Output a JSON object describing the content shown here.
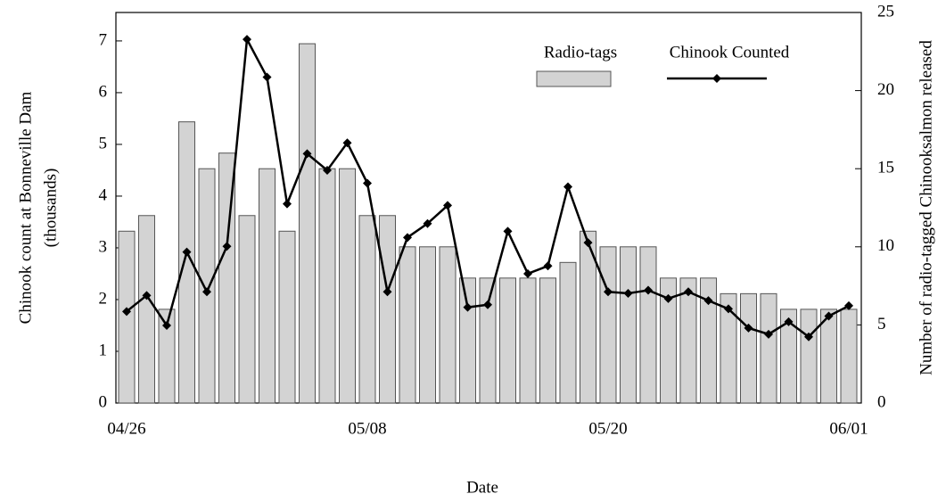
{
  "chart_data": {
    "type": "bar-line",
    "xlabel": "Date",
    "ylabel": [
      "Chinook count at Bonneville Dam",
      "(thousands)"
    ],
    "y2label": "Number of radio-tagged Chinooksalmon released",
    "categories": [
      "04/26",
      null,
      null,
      null,
      null,
      null,
      null,
      null,
      null,
      null,
      null,
      null,
      "05/08",
      null,
      null,
      null,
      null,
      null,
      null,
      null,
      null,
      null,
      null,
      null,
      "05/20",
      null,
      null,
      null,
      null,
      null,
      null,
      null,
      null,
      null,
      null,
      null,
      "06/01"
    ],
    "ylim": [
      0,
      7.55
    ],
    "yticks": [
      0,
      1,
      2,
      3,
      4,
      5,
      6,
      7
    ],
    "y2lim": [
      0,
      25
    ],
    "y2ticks": [
      0,
      5,
      10,
      15,
      20,
      25
    ],
    "series": [
      {
        "name": "Radio-tags",
        "type": "bar",
        "axis": "y2",
        "color": "#d3d3d3",
        "values": [
          11,
          12,
          6,
          18,
          15,
          16,
          12,
          15,
          11,
          23,
          15,
          15,
          12,
          12,
          10,
          10,
          10,
          8,
          8,
          8,
          8,
          8,
          9,
          11,
          10,
          10,
          10,
          8,
          8,
          8,
          7,
          7,
          7,
          6,
          6,
          6,
          6
        ]
      },
      {
        "name": "Chinook Counted",
        "type": "line",
        "color": "#000000",
        "values": [
          1.77,
          2.08,
          1.5,
          2.92,
          2.15,
          3.03,
          7.03,
          6.3,
          3.85,
          4.82,
          4.5,
          5.03,
          4.25,
          2.15,
          3.2,
          3.47,
          3.82,
          1.85,
          1.9,
          3.32,
          2.5,
          2.65,
          4.18,
          3.1,
          2.15,
          2.12,
          2.18,
          2.02,
          2.15,
          1.98,
          1.82,
          1.45,
          1.33,
          1.57,
          1.28,
          1.68,
          1.88
        ]
      }
    ]
  }
}
